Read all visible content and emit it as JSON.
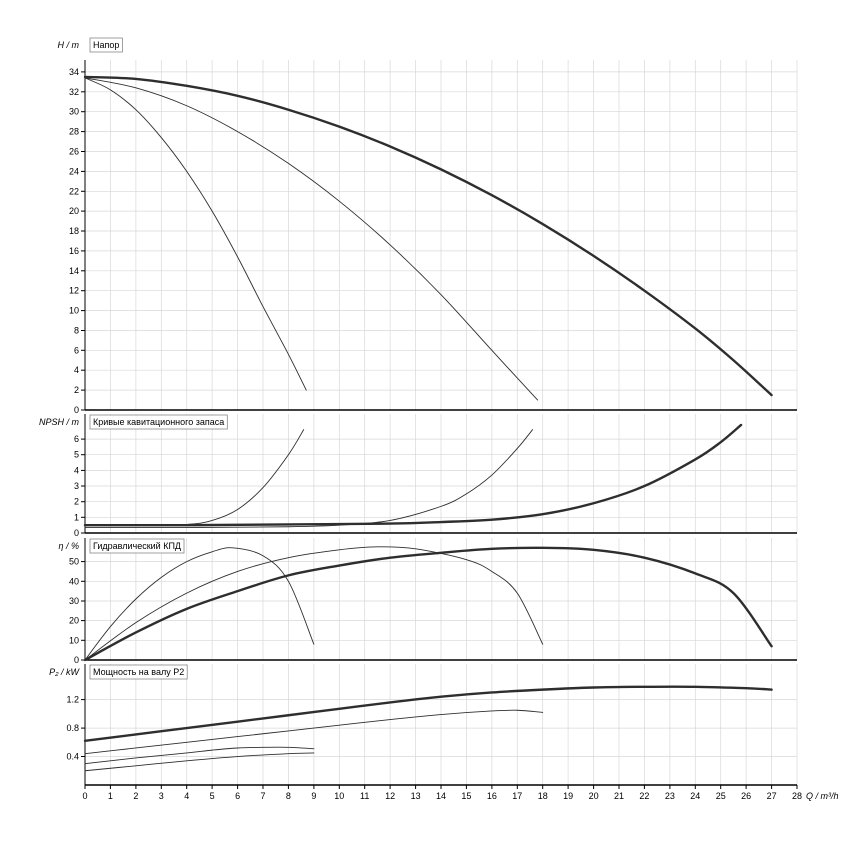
{
  "style": {
    "background": "#ffffff",
    "curve_color": "#2e2e2e",
    "grid_color": "#d8d8d8",
    "axis_color": "#000000",
    "title_box_border": "#808080",
    "text_color": "#000000"
  },
  "chart_data": {
    "type": "line",
    "x_axis": {
      "label": "Q / m³/h",
      "min": 0,
      "max": 28,
      "ticks": [
        0,
        1,
        2,
        3,
        4,
        5,
        6,
        7,
        8,
        9,
        10,
        11,
        12,
        13,
        14,
        15,
        16,
        17,
        18,
        19,
        20,
        21,
        22,
        23,
        24,
        25,
        26,
        27,
        28
      ],
      "tick_labels": [
        "0",
        "1",
        "2",
        "3",
        "4",
        "5",
        "6",
        "7",
        "8",
        "9",
        "10",
        "11",
        "12",
        "13",
        "14",
        "15",
        "16",
        "17",
        "18",
        "19",
        "20",
        "21",
        "22",
        "23",
        "24",
        "25",
        "26",
        "27",
        "28"
      ]
    },
    "panels": [
      {
        "id": "head",
        "title": "Напор",
        "ylabel": "H / m",
        "ylim": [
          0,
          35.2
        ],
        "yticks": [
          0,
          2,
          4,
          6,
          8,
          10,
          12,
          14,
          16,
          18,
          20,
          22,
          24,
          26,
          28,
          30,
          32,
          34
        ],
        "ytick_labels": [
          "0",
          "2",
          "4",
          "6",
          "8",
          "10",
          "12",
          "14",
          "16",
          "18",
          "20",
          "22",
          "24",
          "26",
          "28",
          "30",
          "32",
          "34"
        ],
        "series": [
          {
            "name": "head-curve-full",
            "thick": true,
            "x": [
              0,
              2,
              4,
              6,
              8,
              10,
              12,
              14,
              16,
              18,
              20,
              22,
              24,
              25.5,
              27
            ],
            "y": [
              33.5,
              33.3,
              32.6,
              31.6,
              30.2,
              28.5,
              26.5,
              24.2,
              21.6,
              18.7,
              15.5,
              12,
              8.2,
              5,
              1.5
            ]
          },
          {
            "name": "head-curve-mid",
            "thick": false,
            "x": [
              0,
              2,
              4,
              6,
              8,
              10,
              12,
              14,
              16,
              17.8
            ],
            "y": [
              33.4,
              32.4,
              30.6,
              28,
              24.8,
              21,
              16.6,
              11.6,
              6,
              1
            ]
          },
          {
            "name": "head-curve-low",
            "thick": false,
            "x": [
              0,
              1,
              2,
              3,
              4,
              5,
              6,
              7,
              8,
              8.7
            ],
            "y": [
              33.4,
              32.2,
              30.2,
              27.4,
              24,
              20,
              15.4,
              10.4,
              5.6,
              2
            ]
          }
        ]
      },
      {
        "id": "npsh",
        "title": "Кривые кавитационного запаса",
        "ylabel": "NPSH / m",
        "ylim": [
          0,
          7.6
        ],
        "yticks": [
          0,
          1,
          2,
          3,
          4,
          5,
          6
        ],
        "ytick_labels": [
          "0",
          "1",
          "2",
          "3",
          "4",
          "5",
          "6"
        ],
        "series": [
          {
            "name": "npsh-curve-full",
            "thick": true,
            "x": [
              0,
              4,
              8,
              12,
              14,
              16,
              18,
              20,
              22,
              24,
              25,
              25.8
            ],
            "y": [
              0.5,
              0.5,
              0.55,
              0.6,
              0.7,
              0.85,
              1.2,
              1.9,
              3,
              4.7,
              5.8,
              6.9
            ]
          },
          {
            "name": "npsh-curve-mid",
            "thick": false,
            "x": [
              0,
              4,
              8,
              10,
              12,
              14,
              15,
              16,
              17,
              17.6
            ],
            "y": [
              0.35,
              0.35,
              0.4,
              0.5,
              0.8,
              1.7,
              2.5,
              3.7,
              5.4,
              6.6
            ]
          },
          {
            "name": "npsh-curve-low",
            "thick": false,
            "x": [
              0,
              2,
              4,
              5,
              6,
              7,
              8,
              8.6
            ],
            "y": [
              0.5,
              0.5,
              0.55,
              0.8,
              1.5,
              2.9,
              5,
              6.6
            ]
          }
        ]
      },
      {
        "id": "efficiency",
        "title": "Гидравлический КПД",
        "ylabel": "η / %",
        "ylim": [
          0,
          62
        ],
        "yticks": [
          0,
          10,
          20,
          30,
          40,
          50
        ],
        "ytick_labels": [
          "0",
          "10",
          "20",
          "30",
          "40",
          "50"
        ],
        "series": [
          {
            "name": "eff-curve-full",
            "thick": true,
            "x": [
              0,
              2,
              4,
              6,
              8,
              10,
              12,
              14,
              16,
              18,
              20,
              22,
              24,
              25.5,
              27
            ],
            "y": [
              0,
              14,
              26,
              35,
              43,
              48,
              52,
              54.5,
              56.5,
              57,
              56,
              52,
              44,
              34,
              7
            ]
          },
          {
            "name": "eff-curve-mid",
            "thick": false,
            "x": [
              0,
              2,
              4,
              6,
              8,
              10,
              11.5,
              13,
              15,
              16,
              17,
              18
            ],
            "y": [
              0,
              19,
              34,
              45,
              52,
              56,
              57.5,
              56.5,
              51,
              45,
              34,
              8
            ]
          },
          {
            "name": "eff-curve-low",
            "thick": false,
            "x": [
              0,
              1,
              2,
              3,
              4,
              5,
              5.8,
              7,
              8,
              9
            ],
            "y": [
              0,
              17,
              31,
              42,
              50,
              55,
              57,
              53,
              40,
              8
            ]
          }
        ]
      },
      {
        "id": "power",
        "title": "Мощность на валу P2",
        "ylabel": "P₂ / kW",
        "ylim": [
          0,
          1.7
        ],
        "yticks": [
          0.4,
          0.8,
          1.2
        ],
        "ytick_labels": [
          "0.4",
          "0.8",
          "1.2"
        ],
        "series": [
          {
            "name": "p2-curve-full",
            "thick": true,
            "x": [
              0,
              2,
              4,
              6,
              8,
              10,
              12,
              14,
              16,
              18,
              20,
              22,
              24,
              26,
              27
            ],
            "y": [
              0.62,
              0.71,
              0.8,
              0.89,
              0.98,
              1.07,
              1.16,
              1.24,
              1.3,
              1.34,
              1.37,
              1.38,
              1.38,
              1.36,
              1.34
            ]
          },
          {
            "name": "p2-curve-mid",
            "thick": false,
            "x": [
              0,
              2,
              4,
              6,
              8,
              10,
              12,
              14,
              16,
              17,
              18
            ],
            "y": [
              0.44,
              0.52,
              0.6,
              0.68,
              0.76,
              0.84,
              0.92,
              0.99,
              1.04,
              1.05,
              1.02
            ]
          },
          {
            "name": "p2-curve-low",
            "thick": false,
            "x": [
              0,
              2,
              4,
              5,
              6,
              7,
              8,
              9
            ],
            "y": [
              0.3,
              0.38,
              0.45,
              0.49,
              0.52,
              0.53,
              0.53,
              0.51
            ]
          },
          {
            "name": "p2-curve-low-2",
            "thick": false,
            "x": [
              0,
              2,
              4,
              6,
              8,
              9
            ],
            "y": [
              0.2,
              0.27,
              0.34,
              0.4,
              0.44,
              0.45
            ]
          }
        ]
      }
    ]
  }
}
